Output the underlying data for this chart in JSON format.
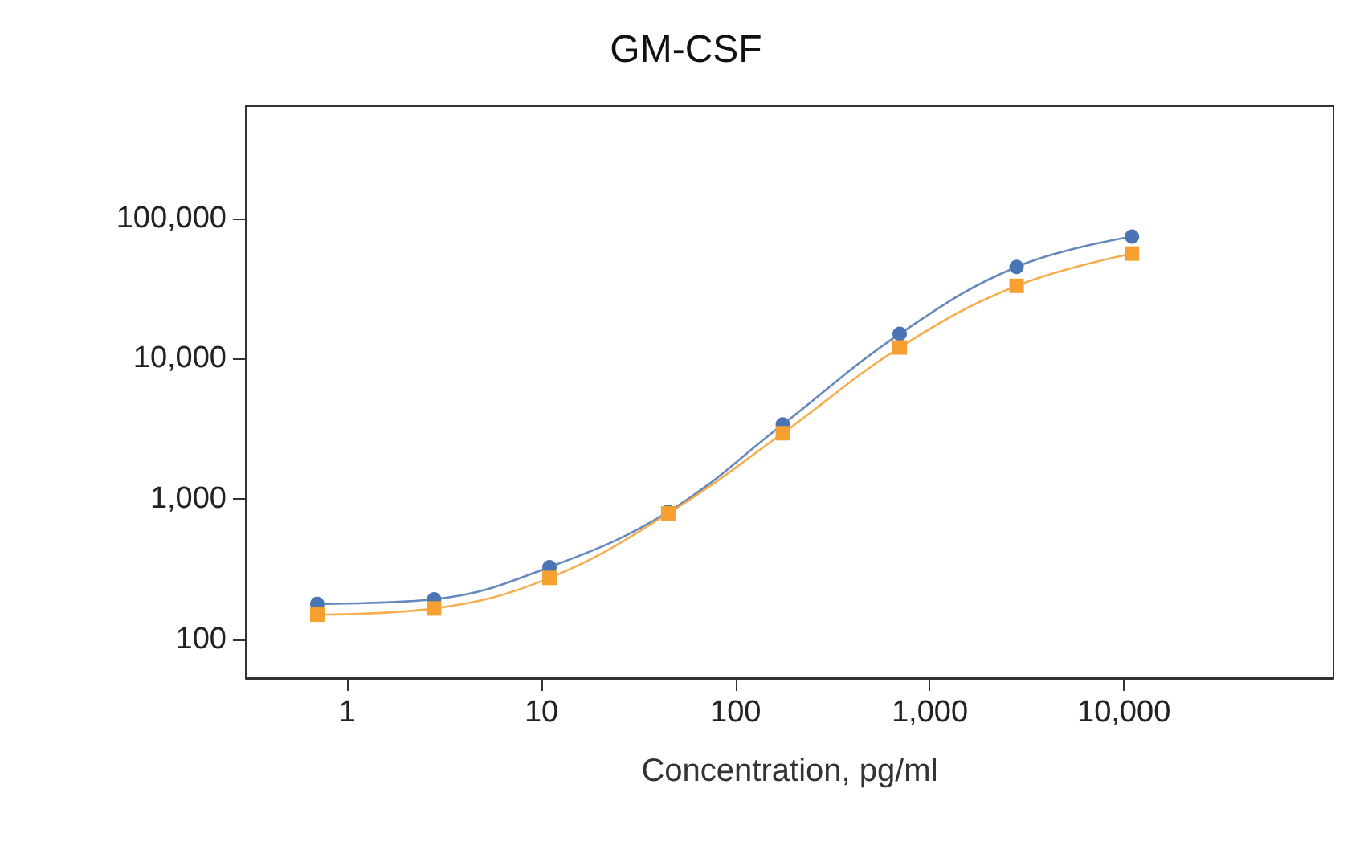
{
  "chart_data": {
    "type": "line",
    "title": "GM-CSF",
    "xlabel": "Concentration, pg/ml",
    "log": "xy",
    "grid": false,
    "xlim": [
      0.3,
      120000
    ],
    "xticks": [
      1,
      10,
      100,
      {
        "value": 1000,
        "label": "1,000"
      },
      {
        "value": 10000,
        "label": "10,000"
      }
    ],
    "ylim": [
      53,
      630000
    ],
    "yticks": [
      100,
      {
        "value": 1000,
        "label": "1,000"
      },
      {
        "value": 10000,
        "label": "10,000"
      },
      {
        "value": 100000,
        "label": "100,000"
      }
    ],
    "x": [
      0.7,
      2.8,
      11,
      45,
      175,
      700,
      2800,
      11000
    ],
    "series": [
      {
        "color": "#4a74b4",
        "marker": "circle",
        "values": [
          179,
          193,
          327,
          810,
          3400,
          15000,
          45000,
          74000
        ]
      },
      {
        "color": "#f5a031",
        "marker": "square",
        "values": [
          150,
          166,
          274,
          790,
          2940,
          12000,
          33000,
          56000
        ]
      }
    ]
  }
}
